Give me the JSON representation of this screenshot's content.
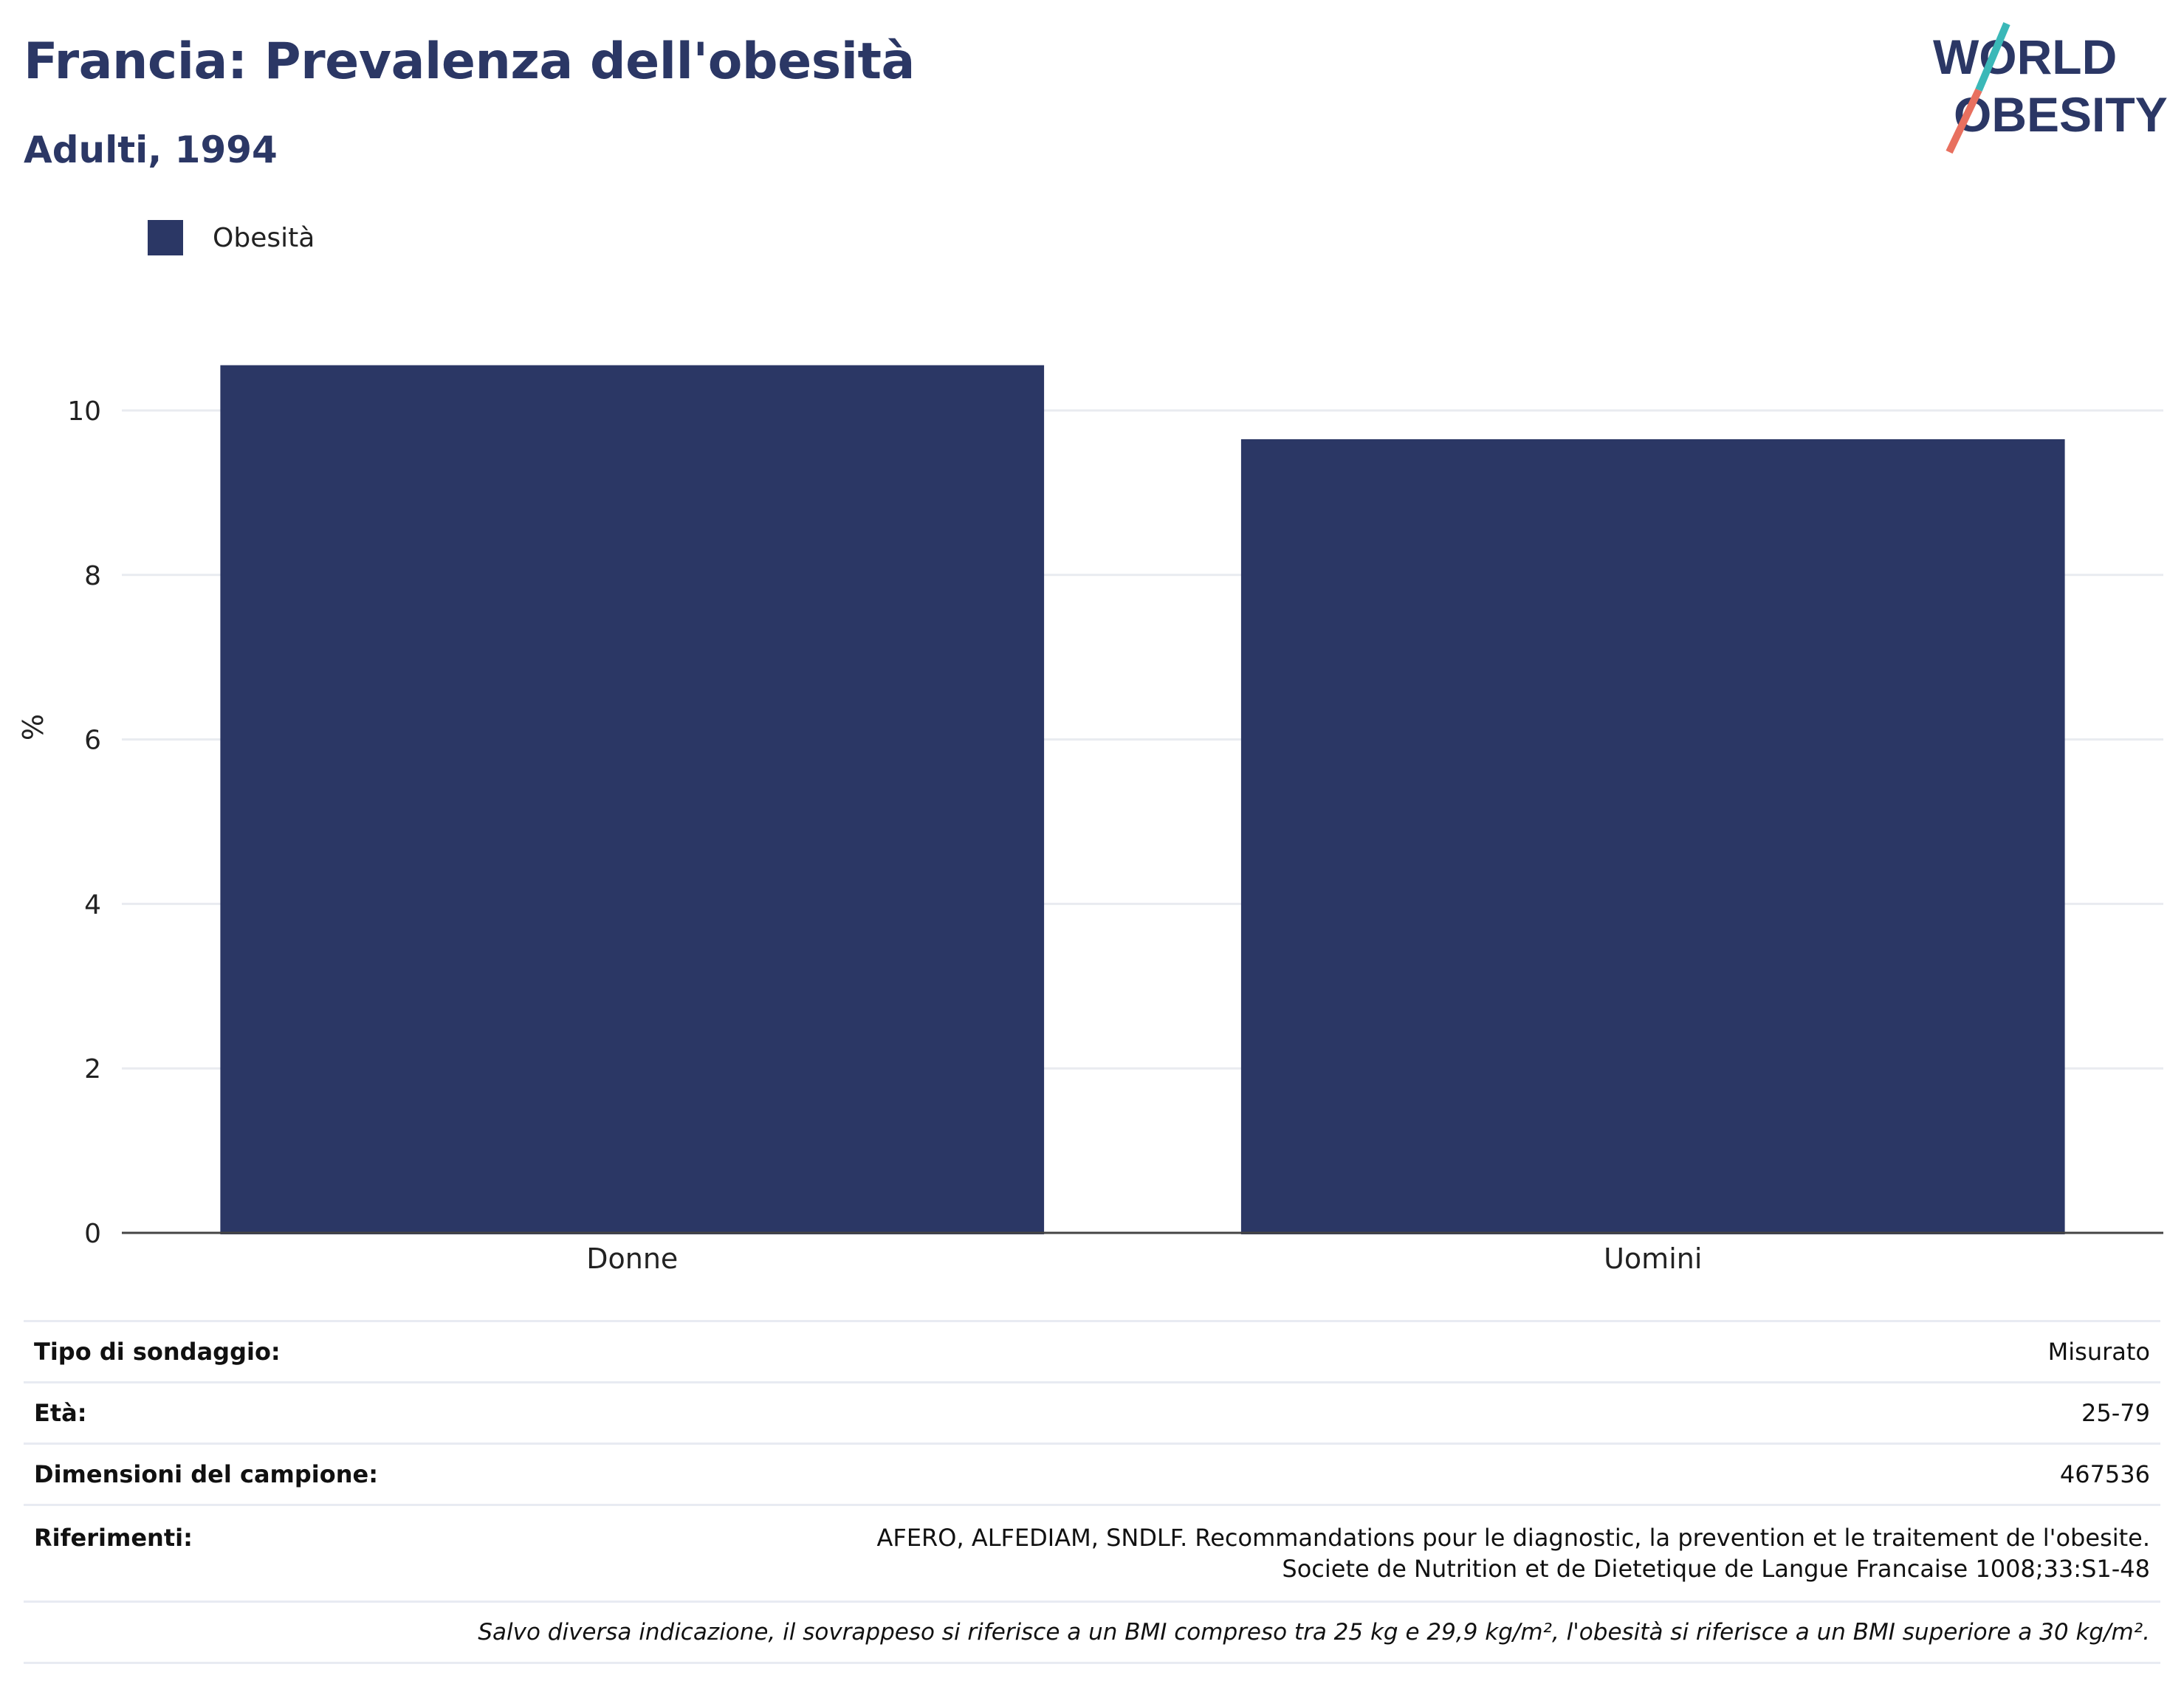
{
  "header": {
    "title": "Francia: Prevalenza dell'obesità",
    "subtitle": "Adulti, 1994"
  },
  "logo": {
    "line1": "WORLD",
    "line2": "OBESITY",
    "colors": {
      "text": "#2b3765",
      "slash_top": "#3bb8b8",
      "slash_bottom": "#e8705f"
    }
  },
  "chart_data": {
    "type": "bar",
    "categories": [
      "Donne",
      "Uomini"
    ],
    "series": [
      {
        "name": "Obesità",
        "values": [
          10.55,
          9.65
        ],
        "color": "#2b3765"
      }
    ],
    "ylabel": "%",
    "xlabel": "",
    "ylim": [
      0,
      11.4
    ],
    "yticks": [
      0,
      2,
      4,
      6,
      8,
      10
    ],
    "grid": true,
    "legend": "top-left"
  },
  "info": {
    "rows": [
      {
        "key": "Tipo di sondaggio:",
        "value": "Misurato"
      },
      {
        "key": "Età:",
        "value": "25-79"
      },
      {
        "key": "Dimensioni del campione:",
        "value": "467536"
      },
      {
        "key": "Riferimenti:",
        "value": "AFERO, ALFEDIAM, SNDLF. Recommandations pour le diagnostic, la prevention et le traitement de l'obesite. Societe de Nutrition et de Dietetique de Langue Francaise 1008;33:S1-48"
      }
    ],
    "note": "Salvo diversa indicazione, il sovrappeso si riferisce a un BMI compreso tra 25 kg e 29,9 kg/m², l'obesità si riferisce a un BMI superiore a 30 kg/m²."
  }
}
